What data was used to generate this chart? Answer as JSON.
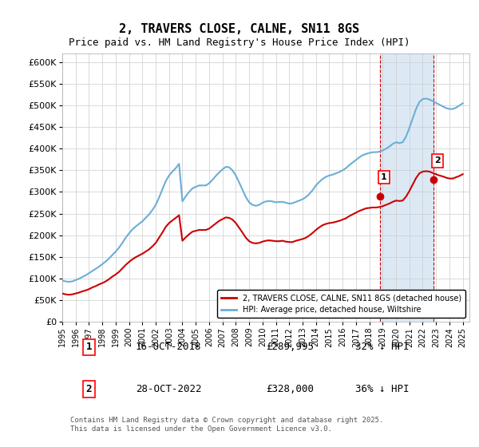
{
  "title": "2, TRAVERS CLOSE, CALNE, SN11 8GS",
  "subtitle": "Price paid vs. HM Land Registry's House Price Index (HPI)",
  "ylabel_ticks": [
    "£0",
    "£50K",
    "£100K",
    "£150K",
    "£200K",
    "£250K",
    "£300K",
    "£350K",
    "£400K",
    "£450K",
    "£500K",
    "£550K",
    "£600K"
  ],
  "ylim": [
    0,
    620000
  ],
  "ytick_vals": [
    0,
    50000,
    100000,
    150000,
    200000,
    250000,
    300000,
    350000,
    400000,
    450000,
    500000,
    550000,
    600000
  ],
  "xlim_start": 1995.0,
  "xlim_end": 2025.5,
  "sale1_x": 2018.79,
  "sale1_y": 289995,
  "sale1_label": "1",
  "sale2_x": 2022.82,
  "sale2_y": 328000,
  "sale2_label": "2",
  "vline1_x": 2018.79,
  "vline2_x": 2022.82,
  "highlight_color": "#dce9f5",
  "vline_color": "#cc0000",
  "legend_line1": "2, TRAVERS CLOSE, CALNE, SN11 8GS (detached house)",
  "legend_line2": "HPI: Average price, detached house, Wiltshire",
  "red_line_color": "#cc0000",
  "blue_line_color": "#6baed6",
  "footnote": "Contains HM Land Registry data © Crown copyright and database right 2025.\nThis data is licensed under the Open Government Licence v3.0.",
  "table_rows": [
    [
      "1",
      "16-OCT-2018",
      "£289,995",
      "32% ↓ HPI"
    ],
    [
      "2",
      "28-OCT-2022",
      "£328,000",
      "36% ↓ HPI"
    ]
  ],
  "hpi_x": [
    1995.0,
    1995.25,
    1995.5,
    1995.75,
    1996.0,
    1996.25,
    1996.5,
    1996.75,
    1997.0,
    1997.25,
    1997.5,
    1997.75,
    1998.0,
    1998.25,
    1998.5,
    1998.75,
    1999.0,
    1999.25,
    1999.5,
    1999.75,
    2000.0,
    2000.25,
    2000.5,
    2000.75,
    2001.0,
    2001.25,
    2001.5,
    2001.75,
    2002.0,
    2002.25,
    2002.5,
    2002.75,
    2003.0,
    2003.25,
    2003.5,
    2003.75,
    2004.0,
    2004.25,
    2004.5,
    2004.75,
    2005.0,
    2005.25,
    2005.5,
    2005.75,
    2006.0,
    2006.25,
    2006.5,
    2006.75,
    2007.0,
    2007.25,
    2007.5,
    2007.75,
    2008.0,
    2008.25,
    2008.5,
    2008.75,
    2009.0,
    2009.25,
    2009.5,
    2009.75,
    2010.0,
    2010.25,
    2010.5,
    2010.75,
    2011.0,
    2011.25,
    2011.5,
    2011.75,
    2012.0,
    2012.25,
    2012.5,
    2012.75,
    2013.0,
    2013.25,
    2013.5,
    2013.75,
    2014.0,
    2014.25,
    2014.5,
    2014.75,
    2015.0,
    2015.25,
    2015.5,
    2015.75,
    2016.0,
    2016.25,
    2016.5,
    2016.75,
    2017.0,
    2017.25,
    2017.5,
    2017.75,
    2018.0,
    2018.25,
    2018.5,
    2018.75,
    2019.0,
    2019.25,
    2019.5,
    2019.75,
    2020.0,
    2020.25,
    2020.5,
    2020.75,
    2021.0,
    2021.25,
    2021.5,
    2021.75,
    2022.0,
    2022.25,
    2022.5,
    2022.75,
    2023.0,
    2023.25,
    2023.5,
    2023.75,
    2024.0,
    2024.25,
    2024.5,
    2024.75,
    2025.0
  ],
  "hpi_y": [
    95000,
    93000,
    92000,
    93000,
    96000,
    99000,
    103000,
    107000,
    112000,
    117000,
    122000,
    127000,
    133000,
    139000,
    146000,
    154000,
    162000,
    171000,
    182000,
    194000,
    204000,
    213000,
    220000,
    226000,
    232000,
    240000,
    248000,
    258000,
    270000,
    287000,
    306000,
    325000,
    338000,
    347000,
    355000,
    365000,
    278000,
    290000,
    300000,
    308000,
    312000,
    315000,
    315000,
    315000,
    320000,
    328000,
    337000,
    345000,
    352000,
    358000,
    357000,
    350000,
    338000,
    322000,
    305000,
    288000,
    276000,
    270000,
    268000,
    270000,
    275000,
    278000,
    279000,
    278000,
    276000,
    277000,
    277000,
    275000,
    273000,
    274000,
    277000,
    280000,
    283000,
    288000,
    295000,
    304000,
    315000,
    323000,
    330000,
    335000,
    338000,
    340000,
    343000,
    346000,
    350000,
    355000,
    362000,
    368000,
    374000,
    380000,
    385000,
    388000,
    390000,
    392000,
    392000,
    393000,
    396000,
    400000,
    405000,
    411000,
    415000,
    413000,
    415000,
    428000,
    448000,
    470000,
    492000,
    508000,
    515000,
    516000,
    514000,
    510000,
    506000,
    502000,
    498000,
    494000,
    492000,
    492000,
    495000,
    500000,
    505000
  ],
  "red_x": [
    1995.0,
    1995.25,
    1995.5,
    1995.75,
    1996.0,
    1996.25,
    1996.5,
    1996.75,
    1997.0,
    1997.25,
    1997.5,
    1997.75,
    1998.0,
    1998.25,
    1998.5,
    1998.75,
    1999.0,
    1999.25,
    1999.5,
    1999.75,
    2000.0,
    2000.25,
    2000.5,
    2000.75,
    2001.0,
    2001.25,
    2001.5,
    2001.75,
    2002.0,
    2002.25,
    2002.5,
    2002.75,
    2003.0,
    2003.25,
    2003.5,
    2003.75,
    2004.0,
    2004.25,
    2004.5,
    2004.75,
    2005.0,
    2005.25,
    2005.5,
    2005.75,
    2006.0,
    2006.25,
    2006.5,
    2006.75,
    2007.0,
    2007.25,
    2007.5,
    2007.75,
    2008.0,
    2008.25,
    2008.5,
    2008.75,
    2009.0,
    2009.25,
    2009.5,
    2009.75,
    2010.0,
    2010.25,
    2010.5,
    2010.75,
    2011.0,
    2011.25,
    2011.5,
    2011.75,
    2012.0,
    2012.25,
    2012.5,
    2012.75,
    2013.0,
    2013.25,
    2013.5,
    2013.75,
    2014.0,
    2014.25,
    2014.5,
    2014.75,
    2015.0,
    2015.25,
    2015.5,
    2015.75,
    2016.0,
    2016.25,
    2016.5,
    2016.75,
    2017.0,
    2017.25,
    2017.5,
    2017.75,
    2018.0,
    2018.25,
    2018.5,
    2018.75,
    2019.0,
    2019.25,
    2019.5,
    2019.75,
    2020.0,
    2020.25,
    2020.5,
    2020.75,
    2021.0,
    2021.25,
    2021.5,
    2021.75,
    2022.0,
    2022.25,
    2022.5,
    2022.75,
    2023.0,
    2023.25,
    2023.5,
    2023.75,
    2024.0,
    2024.25,
    2024.5,
    2024.75,
    2025.0
  ],
  "red_y": [
    65000,
    63000,
    62000,
    63000,
    65000,
    67000,
    70000,
    72000,
    75000,
    79000,
    82000,
    86000,
    89000,
    93000,
    98000,
    104000,
    109000,
    115000,
    123000,
    131000,
    138000,
    144000,
    149000,
    153000,
    157000,
    162000,
    167000,
    174000,
    182000,
    194000,
    206000,
    219000,
    228000,
    234000,
    240000,
    246000,
    187000,
    195000,
    202000,
    208000,
    210000,
    212000,
    212000,
    212000,
    215000,
    221000,
    227000,
    233000,
    237000,
    241000,
    240000,
    236000,
    228000,
    217000,
    206000,
    194000,
    186000,
    182000,
    181000,
    182000,
    185000,
    187000,
    188000,
    187000,
    186000,
    186000,
    187000,
    185000,
    184000,
    184000,
    187000,
    189000,
    191000,
    194000,
    199000,
    205000,
    212000,
    218000,
    223000,
    226000,
    228000,
    229000,
    231000,
    233000,
    236000,
    239000,
    244000,
    248000,
    252000,
    256000,
    259000,
    262000,
    263000,
    264000,
    264000,
    265000,
    267000,
    270000,
    273000,
    277000,
    280000,
    279000,
    280000,
    289000,
    302000,
    317000,
    332000,
    343000,
    347000,
    348000,
    347000,
    344000,
    341000,
    338000,
    336000,
    333000,
    331000,
    331000,
    334000,
    337000,
    341000
  ]
}
